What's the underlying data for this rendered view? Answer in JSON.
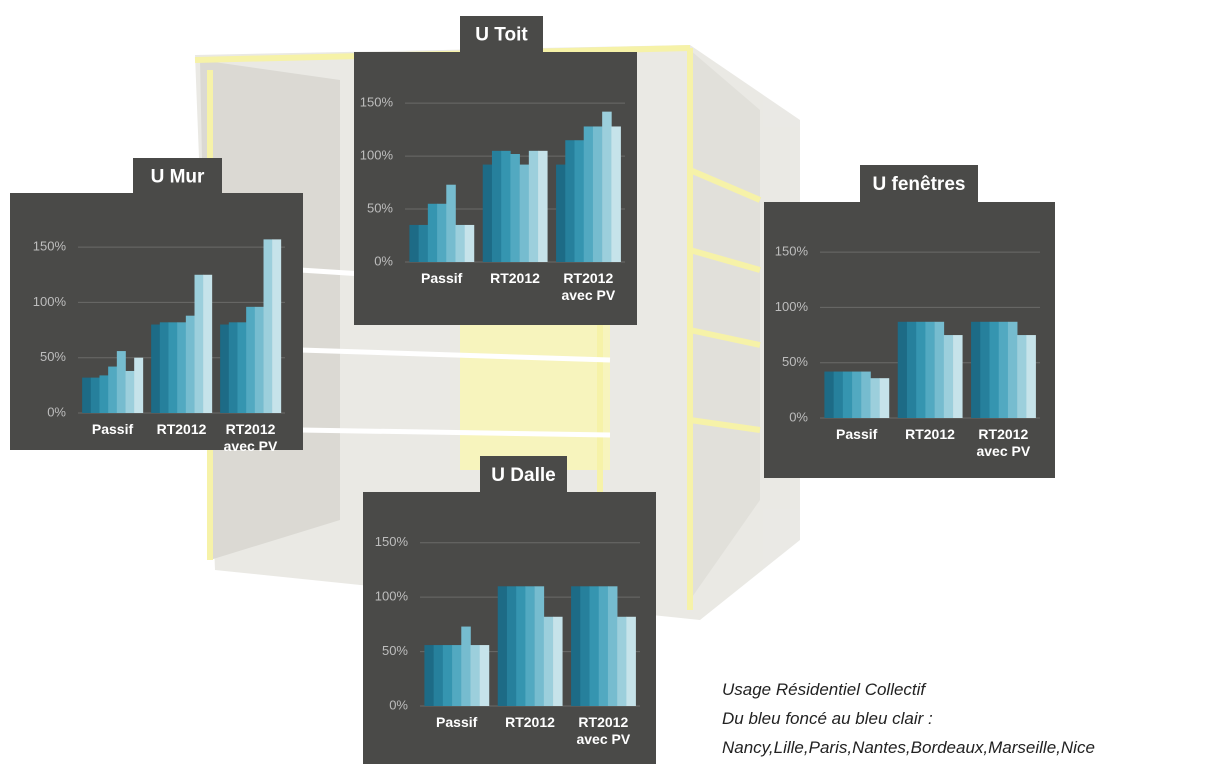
{
  "chart_data": [
    {
      "type": "bar",
      "title": "U Mur",
      "categories": [
        "Passif",
        "RT2012",
        "RT2012 avec PV"
      ],
      "series": [
        {
          "color": "#1d6b86",
          "values": [
            32,
            80,
            80
          ]
        },
        {
          "color": "#26809c",
          "values": [
            32,
            82,
            82
          ]
        },
        {
          "color": "#3595b0",
          "values": [
            34,
            82,
            82
          ]
        },
        {
          "color": "#52a9c1",
          "values": [
            42,
            82,
            96
          ]
        },
        {
          "color": "#76bccf",
          "values": [
            56,
            88,
            96
          ]
        },
        {
          "color": "#9ccfdc",
          "values": [
            38,
            125,
            157
          ]
        },
        {
          "color": "#c6e3ea",
          "values": [
            50,
            125,
            157
          ]
        }
      ],
      "ylim": [
        0,
        170
      ],
      "yticks": [
        {
          "value": 0,
          "label": "0%"
        },
        {
          "value": 50,
          "label": "50%"
        },
        {
          "value": 100,
          "label": "100%"
        },
        {
          "value": 150,
          "label": "150%"
        }
      ],
      "grid": true
    },
    {
      "type": "bar",
      "title": "U Toit",
      "categories": [
        "Passif",
        "RT2012",
        "RT2012 avec PV"
      ],
      "series": [
        {
          "color": "#1d6b86",
          "values": [
            35,
            92,
            92
          ]
        },
        {
          "color": "#26809c",
          "values": [
            35,
            105,
            115
          ]
        },
        {
          "color": "#3595b0",
          "values": [
            55,
            105,
            115
          ]
        },
        {
          "color": "#52a9c1",
          "values": [
            55,
            102,
            128
          ]
        },
        {
          "color": "#76bccf",
          "values": [
            73,
            92,
            128
          ]
        },
        {
          "color": "#9ccfdc",
          "values": [
            35,
            105,
            142
          ]
        },
        {
          "color": "#c6e3ea",
          "values": [
            35,
            105,
            128
          ]
        }
      ],
      "ylim": [
        0,
        170
      ],
      "yticks": [
        {
          "value": 0,
          "label": "0%"
        },
        {
          "value": 50,
          "label": "50%"
        },
        {
          "value": 100,
          "label": "100%"
        },
        {
          "value": 150,
          "label": "150%"
        }
      ],
      "grid": true
    },
    {
      "type": "bar",
      "title": "U fenêtres",
      "categories": [
        "Passif",
        "RT2012",
        "RT2012 avec PV"
      ],
      "series": [
        {
          "color": "#1d6b86",
          "values": [
            42,
            87,
            87
          ]
        },
        {
          "color": "#26809c",
          "values": [
            42,
            87,
            87
          ]
        },
        {
          "color": "#3595b0",
          "values": [
            42,
            87,
            87
          ]
        },
        {
          "color": "#52a9c1",
          "values": [
            42,
            87,
            87
          ]
        },
        {
          "color": "#76bccf",
          "values": [
            42,
            87,
            87
          ]
        },
        {
          "color": "#9ccfdc",
          "values": [
            36,
            75,
            75
          ]
        },
        {
          "color": "#c6e3ea",
          "values": [
            36,
            75,
            75
          ]
        }
      ],
      "ylim": [
        0,
        170
      ],
      "yticks": [
        {
          "value": 0,
          "label": "0%"
        },
        {
          "value": 50,
          "label": "50%"
        },
        {
          "value": 100,
          "label": "100%"
        },
        {
          "value": 150,
          "label": "150%"
        }
      ],
      "grid": true
    },
    {
      "type": "bar",
      "title": "U Dalle",
      "categories": [
        "Passif",
        "RT2012",
        "RT2012 avec PV"
      ],
      "series": [
        {
          "color": "#1d6b86",
          "values": [
            56,
            110,
            110
          ]
        },
        {
          "color": "#26809c",
          "values": [
            56,
            110,
            110
          ]
        },
        {
          "color": "#3595b0",
          "values": [
            56,
            110,
            110
          ]
        },
        {
          "color": "#52a9c1",
          "values": [
            56,
            110,
            110
          ]
        },
        {
          "color": "#76bccf",
          "values": [
            73,
            110,
            110
          ]
        },
        {
          "color": "#9ccfdc",
          "values": [
            56,
            82,
            82
          ]
        },
        {
          "color": "#c6e3ea",
          "values": [
            56,
            82,
            82
          ]
        }
      ],
      "ylim": [
        0,
        170
      ],
      "yticks": [
        {
          "value": 0,
          "label": "0%"
        },
        {
          "value": 50,
          "label": "50%"
        },
        {
          "value": 100,
          "label": "100%"
        },
        {
          "value": 150,
          "label": "150%"
        }
      ],
      "grid": true
    }
  ],
  "note": [
    "Usage Résidentiel Collectif",
    "Du bleu foncé au bleu clair :",
    "Nancy,Lille,Paris,Nantes,Bordeaux,Marseille,Nice"
  ]
}
